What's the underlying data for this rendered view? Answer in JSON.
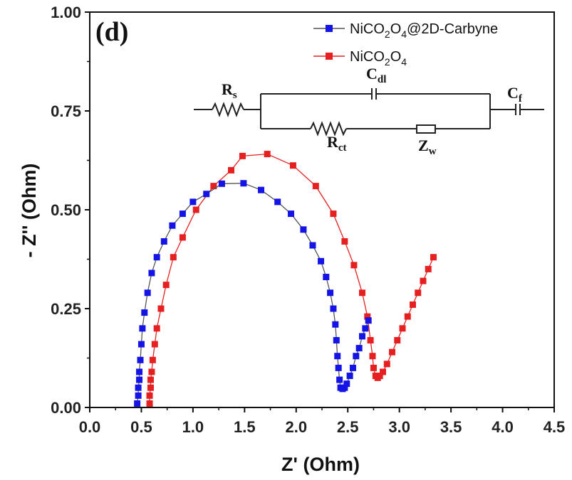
{
  "chart_data": {
    "type": "scatter",
    "panel_label": "(d)",
    "xlabel": "Z' (Ohm)",
    "ylabel": "- Z'' (Ohm)",
    "xlim": [
      0.0,
      4.5
    ],
    "ylim": [
      0.0,
      1.0
    ],
    "xticks": [
      "0.0",
      "0.5",
      "1.0",
      "1.5",
      "2.0",
      "2.5",
      "3.0",
      "3.5",
      "4.0",
      "4.5"
    ],
    "yticks": [
      "0.00",
      "0.25",
      "0.50",
      "0.75",
      "1.00"
    ],
    "legend_position": "top-right",
    "series": [
      {
        "name_parts": [
          "NiCO",
          "2",
          "O",
          "4",
          "@2D-Carbyne"
        ],
        "color": "#1414e6",
        "marker": "square",
        "line_color": "#555555",
        "points": [
          [
            0.46,
            0.01
          ],
          [
            0.47,
            0.03
          ],
          [
            0.47,
            0.05
          ],
          [
            0.48,
            0.07
          ],
          [
            0.48,
            0.09
          ],
          [
            0.49,
            0.12
          ],
          [
            0.5,
            0.16
          ],
          [
            0.51,
            0.2
          ],
          [
            0.53,
            0.24
          ],
          [
            0.56,
            0.29
          ],
          [
            0.6,
            0.34
          ],
          [
            0.65,
            0.38
          ],
          [
            0.72,
            0.42
          ],
          [
            0.8,
            0.46
          ],
          [
            0.9,
            0.49
          ],
          [
            1.0,
            0.52
          ],
          [
            1.13,
            0.54
          ],
          [
            1.28,
            0.566
          ],
          [
            1.49,
            0.567
          ],
          [
            1.66,
            0.55
          ],
          [
            1.82,
            0.52
          ],
          [
            1.95,
            0.49
          ],
          [
            2.07,
            0.45
          ],
          [
            2.16,
            0.41
          ],
          [
            2.24,
            0.37
          ],
          [
            2.29,
            0.33
          ],
          [
            2.33,
            0.29
          ],
          [
            2.36,
            0.25
          ],
          [
            2.38,
            0.21
          ],
          [
            2.39,
            0.17
          ],
          [
            2.4,
            0.13
          ],
          [
            2.41,
            0.1
          ],
          [
            2.42,
            0.07
          ],
          [
            2.43,
            0.05
          ],
          [
            2.45,
            0.047
          ],
          [
            2.47,
            0.05
          ],
          [
            2.49,
            0.06
          ],
          [
            2.52,
            0.08
          ],
          [
            2.55,
            0.1
          ],
          [
            2.58,
            0.13
          ],
          [
            2.61,
            0.15
          ],
          [
            2.64,
            0.18
          ],
          [
            2.67,
            0.2
          ],
          [
            2.7,
            0.22
          ]
        ]
      },
      {
        "name_parts": [
          "NiCO",
          "2",
          "O",
          "4"
        ],
        "color": "#e62020",
        "marker": "square",
        "line_color": "#e62020",
        "points": [
          [
            0.58,
            0.01
          ],
          [
            0.58,
            0.03
          ],
          [
            0.59,
            0.05
          ],
          [
            0.59,
            0.07
          ],
          [
            0.6,
            0.09
          ],
          [
            0.61,
            0.12
          ],
          [
            0.63,
            0.16
          ],
          [
            0.65,
            0.2
          ],
          [
            0.69,
            0.25
          ],
          [
            0.74,
            0.31
          ],
          [
            0.81,
            0.38
          ],
          [
            0.9,
            0.43
          ],
          [
            1.03,
            0.5
          ],
          [
            1.2,
            0.56
          ],
          [
            1.37,
            0.6
          ],
          [
            1.48,
            0.636
          ],
          [
            1.72,
            0.641
          ],
          [
            1.97,
            0.612
          ],
          [
            2.19,
            0.56
          ],
          [
            2.36,
            0.49
          ],
          [
            2.47,
            0.42
          ],
          [
            2.56,
            0.36
          ],
          [
            2.64,
            0.29
          ],
          [
            2.69,
            0.23
          ],
          [
            2.72,
            0.17
          ],
          [
            2.74,
            0.13
          ],
          [
            2.75,
            0.1
          ],
          [
            2.77,
            0.08
          ],
          [
            2.79,
            0.075
          ],
          [
            2.81,
            0.08
          ],
          [
            2.84,
            0.09
          ],
          [
            2.88,
            0.11
          ],
          [
            2.93,
            0.14
          ],
          [
            2.98,
            0.17
          ],
          [
            3.03,
            0.2
          ],
          [
            3.08,
            0.23
          ],
          [
            3.13,
            0.26
          ],
          [
            3.18,
            0.29
          ],
          [
            3.23,
            0.32
          ],
          [
            3.28,
            0.35
          ],
          [
            3.33,
            0.38
          ]
        ]
      }
    ],
    "circuit": {
      "labels": {
        "rs": {
          "main": "R",
          "sub": "s"
        },
        "cdl": {
          "main": "C",
          "sub": "dl"
        },
        "cf": {
          "main": "C",
          "sub": "f"
        },
        "rct": {
          "main": "R",
          "sub": "ct"
        },
        "zw": {
          "main": "Z",
          "sub": "w"
        }
      }
    }
  }
}
